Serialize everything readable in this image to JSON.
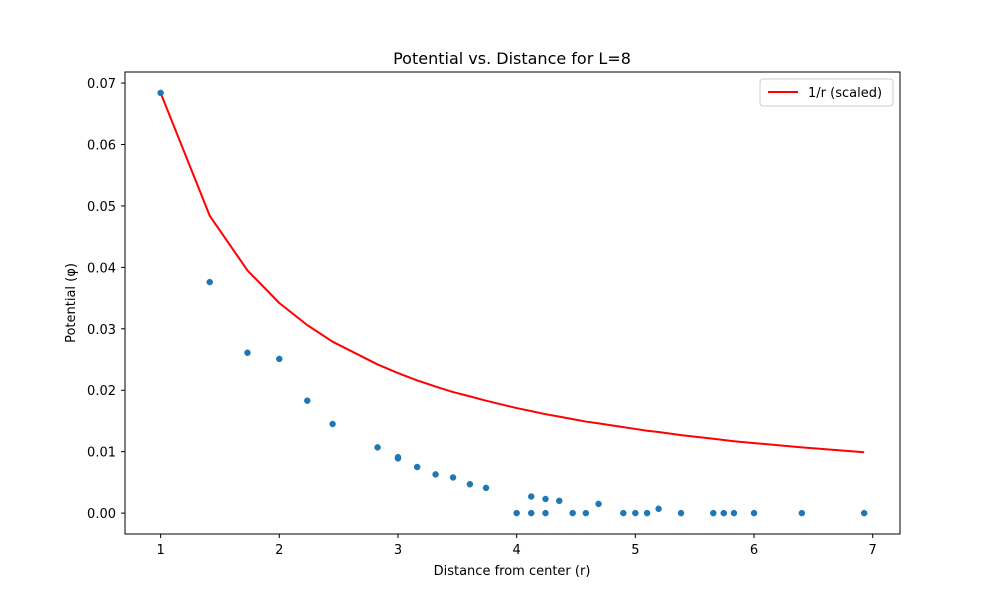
{
  "chart_data": {
    "type": "scatter",
    "title": "Potential vs. Distance for L=8",
    "xlabel": "Distance from center (r)",
    "ylabel": "Potential (φ)",
    "xlim": [
      0.7,
      7.23
    ],
    "ylim": [
      -0.0034,
      0.0718
    ],
    "xticks": [
      1,
      2,
      3,
      4,
      5,
      6,
      7
    ],
    "xtick_labels": [
      "1",
      "2",
      "3",
      "4",
      "5",
      "6",
      "7"
    ],
    "yticks": [
      0.0,
      0.01,
      0.02,
      0.03,
      0.04,
      0.05,
      0.06,
      0.07
    ],
    "ytick_labels": [
      "0.00",
      "0.01",
      "0.02",
      "0.03",
      "0.04",
      "0.05",
      "0.06",
      "0.07"
    ],
    "grid": false,
    "legend_position": "upper-right",
    "series": [
      {
        "kind": "scatter",
        "color": "#1f77b4",
        "points": [
          [
            1.0,
            0.0684
          ],
          [
            1.414,
            0.0376
          ],
          [
            1.732,
            0.0261
          ],
          [
            2.0,
            0.0251
          ],
          [
            2.236,
            0.0183
          ],
          [
            2.449,
            0.0145
          ],
          [
            2.828,
            0.0107
          ],
          [
            3.0,
            0.0091
          ],
          [
            3.0,
            0.0089
          ],
          [
            3.162,
            0.0075
          ],
          [
            3.317,
            0.0063
          ],
          [
            3.464,
            0.0058
          ],
          [
            3.606,
            0.0047
          ],
          [
            3.742,
            0.0041
          ],
          [
            4.0,
            0.0
          ],
          [
            4.123,
            0.0
          ],
          [
            4.123,
            0.0027
          ],
          [
            4.243,
            0.0023
          ],
          [
            4.243,
            0.0
          ],
          [
            4.359,
            0.002
          ],
          [
            4.472,
            0.0
          ],
          [
            4.583,
            0.0
          ],
          [
            4.69,
            0.0015
          ],
          [
            4.899,
            0.0
          ],
          [
            5.0,
            0.0
          ],
          [
            5.099,
            0.0
          ],
          [
            5.196,
            0.0007
          ],
          [
            5.385,
            0.0
          ],
          [
            5.657,
            0.0
          ],
          [
            5.745,
            0.0
          ],
          [
            5.831,
            0.0
          ],
          [
            6.0,
            0.0
          ],
          [
            6.403,
            0.0
          ],
          [
            6.928,
            0.0
          ]
        ]
      },
      {
        "kind": "line",
        "name": "1/r (scaled)",
        "color": "#ff0000",
        "points": [
          [
            1.0,
            0.0684
          ],
          [
            1.414,
            0.0484
          ],
          [
            1.732,
            0.0395
          ],
          [
            2.0,
            0.0342
          ],
          [
            2.236,
            0.0306
          ],
          [
            2.449,
            0.0279
          ],
          [
            2.828,
            0.0242
          ],
          [
            3.0,
            0.0228
          ],
          [
            3.162,
            0.0216
          ],
          [
            3.317,
            0.0206
          ],
          [
            3.464,
            0.0197
          ],
          [
            3.606,
            0.019
          ],
          [
            3.742,
            0.0183
          ],
          [
            4.0,
            0.0171
          ],
          [
            4.123,
            0.0166
          ],
          [
            4.243,
            0.0161
          ],
          [
            4.359,
            0.0157
          ],
          [
            4.472,
            0.0153
          ],
          [
            4.583,
            0.0149
          ],
          [
            4.69,
            0.0146
          ],
          [
            4.899,
            0.014
          ],
          [
            5.0,
            0.0137
          ],
          [
            5.099,
            0.0134
          ],
          [
            5.196,
            0.0132
          ],
          [
            5.385,
            0.0127
          ],
          [
            5.657,
            0.0121
          ],
          [
            5.745,
            0.0119
          ],
          [
            5.831,
            0.0117
          ],
          [
            6.0,
            0.0114
          ],
          [
            6.403,
            0.0107
          ],
          [
            6.928,
            0.0099
          ]
        ]
      }
    ]
  }
}
